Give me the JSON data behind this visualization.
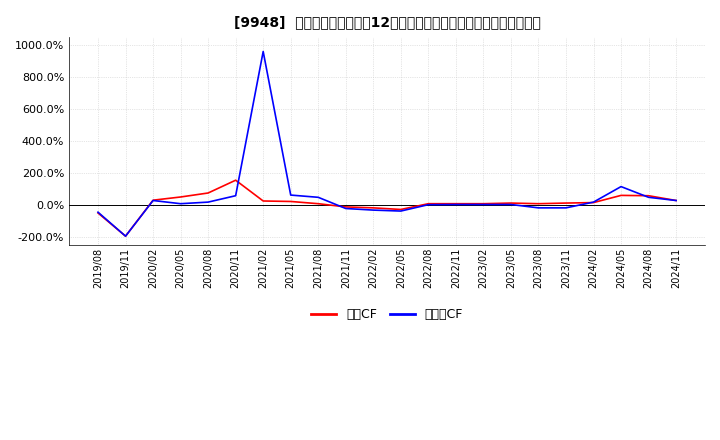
{
  "title": "[9948]  キャッシュフローの12か月移動合計の対前年同期増減率の推移",
  "ylim": [
    -250,
    1050
  ],
  "yticks": [
    -200,
    0,
    200,
    400,
    600,
    800,
    1000
  ],
  "background_color": "#ffffff",
  "plot_bg_color": "#ffffff",
  "grid_color": "#cccccc",
  "operating_cf_color": "#ff0000",
  "free_cf_color": "#0000ff",
  "legend_labels": [
    "営業CF",
    "フリーCF"
  ],
  "dates": [
    "2019/08",
    "2019/11",
    "2020/02",
    "2020/05",
    "2020/08",
    "2020/11",
    "2021/02",
    "2021/05",
    "2021/08",
    "2021/11",
    "2022/02",
    "2022/05",
    "2022/08",
    "2022/11",
    "2023/02",
    "2023/05",
    "2023/08",
    "2023/11",
    "2024/02",
    "2024/05",
    "2024/08",
    "2024/11"
  ],
  "operating_cf": [
    -50,
    -195,
    30,
    50,
    75,
    155,
    25,
    22,
    8,
    -12,
    -18,
    -28,
    8,
    8,
    8,
    12,
    8,
    12,
    15,
    60,
    58,
    28
  ],
  "free_cf": [
    -45,
    -195,
    28,
    8,
    18,
    58,
    960,
    62,
    48,
    -22,
    -32,
    -38,
    2,
    3,
    3,
    3,
    -18,
    -18,
    18,
    115,
    48,
    28
  ]
}
